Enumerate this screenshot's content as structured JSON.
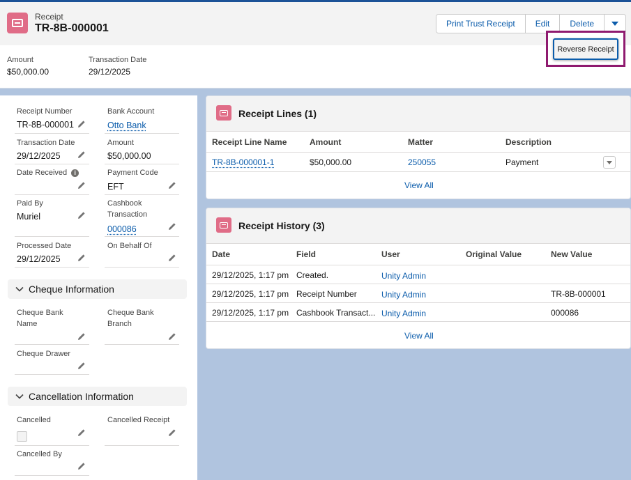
{
  "header": {
    "object_label": "Receipt",
    "record_title": "TR-8B-000001",
    "buttons": {
      "print_trust_receipt": "Print Trust Receipt",
      "edit": "Edit",
      "delete": "Delete"
    },
    "dropdown_menu": {
      "reverse_receipt": "Reverse Receipt"
    },
    "highlights": {
      "amount_label": "Amount",
      "amount_value": "$50,000.00",
      "transaction_date_label": "Transaction Date",
      "transaction_date_value": "29/12/2025"
    }
  },
  "details": {
    "receipt_number": {
      "label": "Receipt Number",
      "value": "TR-8B-000001"
    },
    "bank_account": {
      "label": "Bank Account",
      "value": "Otto Bank"
    },
    "transaction_date": {
      "label": "Transaction Date",
      "value": "29/12/2025"
    },
    "amount": {
      "label": "Amount",
      "value": "$50,000.00"
    },
    "date_received": {
      "label": "Date Received",
      "value": ""
    },
    "payment_code": {
      "label": "Payment Code",
      "value": "EFT"
    },
    "paid_by": {
      "label": "Paid By",
      "value": "Muriel"
    },
    "cashbook_transaction": {
      "label": "Cashbook Transaction",
      "value": "000086"
    },
    "processed_date": {
      "label": "Processed Date",
      "value": "29/12/2025"
    },
    "on_behalf_of": {
      "label": "On Behalf Of",
      "value": ""
    }
  },
  "cheque_section": {
    "title": "Cheque Information",
    "cheque_bank_name": "Cheque Bank Name",
    "cheque_bank_branch": "Cheque Bank Branch",
    "cheque_drawer": "Cheque Drawer"
  },
  "cancellation_section": {
    "title": "Cancellation Information",
    "cancelled": "Cancelled",
    "cancelled_receipt": "Cancelled Receipt",
    "cancelled_by": "Cancelled By"
  },
  "receipt_lines": {
    "title": "Receipt Lines (1)",
    "columns": [
      "Receipt Line Name",
      "Amount",
      "Matter",
      "Description"
    ],
    "rows": [
      {
        "name": "TR-8B-000001-1",
        "amount": "$50,000.00",
        "matter": "250055",
        "description": "Payment"
      }
    ],
    "view_all": "View All"
  },
  "receipt_history": {
    "title": "Receipt History (3)",
    "columns": [
      "Date",
      "Field",
      "User",
      "Original Value",
      "New Value"
    ],
    "rows": [
      {
        "date": "29/12/2025, 1:17 pm",
        "field": "Created.",
        "user": "Unity Admin",
        "original": "",
        "new": ""
      },
      {
        "date": "29/12/2025, 1:17 pm",
        "field": "Receipt Number",
        "user": "Unity Admin",
        "original": "",
        "new": "TR-8B-000001"
      },
      {
        "date": "29/12/2025, 1:17 pm",
        "field": "Cashbook Transact...",
        "user": "Unity Admin",
        "original": "",
        "new": "000086"
      }
    ],
    "view_all": "View All"
  },
  "colors": {
    "brand_blue": "#0b5cab",
    "receipt_icon": "#e06c87",
    "highlight_border": "#8f1a6f",
    "page_background": "#b0c4df"
  }
}
